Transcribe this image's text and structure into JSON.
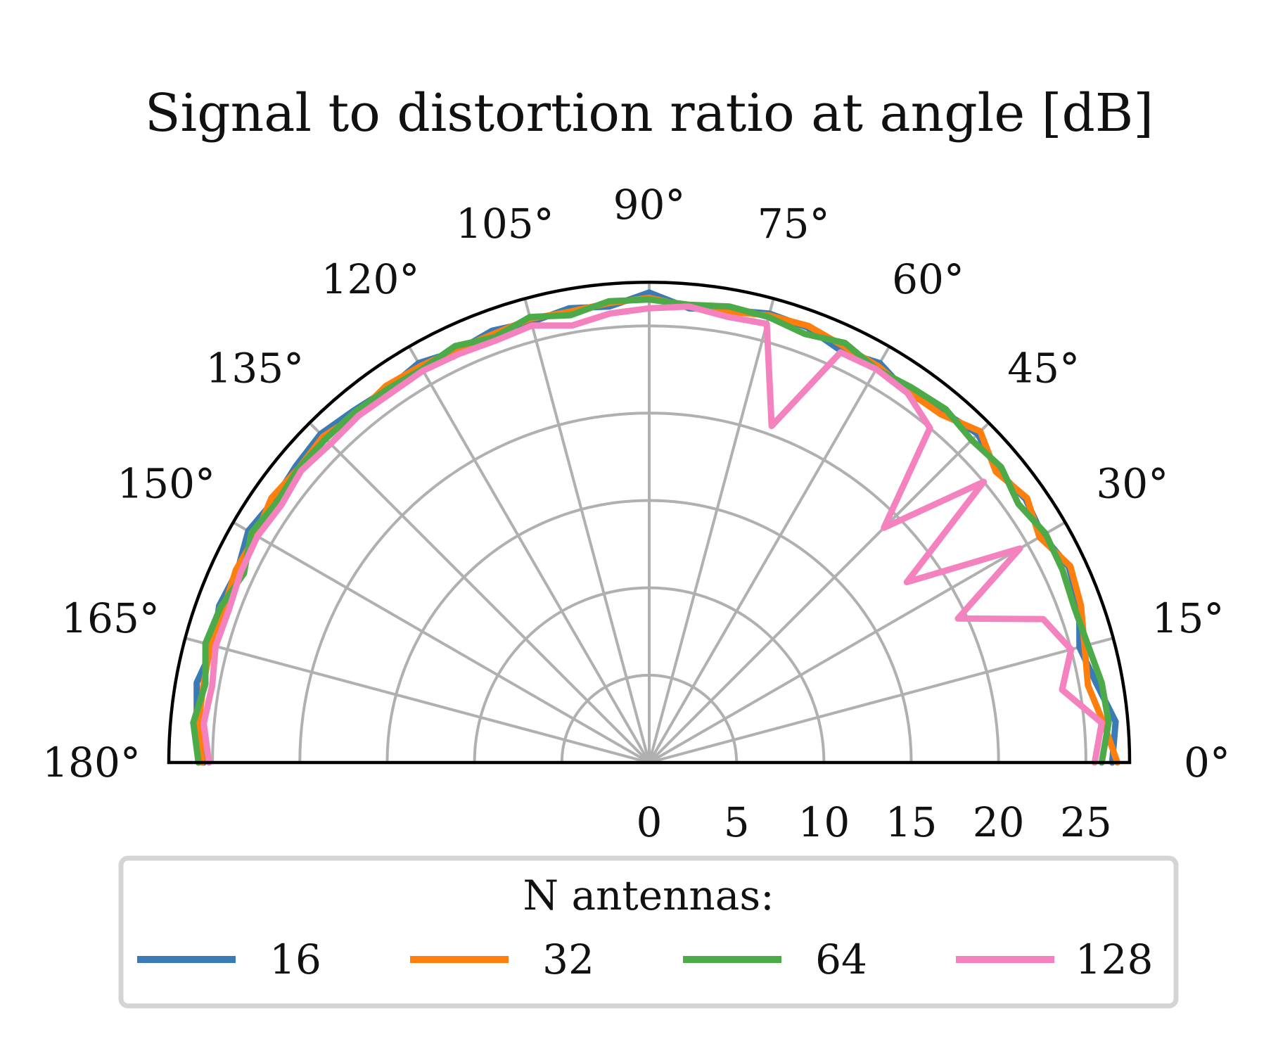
{
  "chart_data": {
    "type": "polar-line",
    "title": "Signal to distortion ratio at angle [dB]",
    "theta_range_deg": [
      0,
      180
    ],
    "r_range": [
      0,
      27.5
    ],
    "angle_ticks": [
      "0°",
      "15°",
      "30°",
      "45°",
      "60°",
      "75°",
      "90°",
      "105°",
      "120°",
      "135°",
      "150°",
      "165°",
      "180°"
    ],
    "radial_ticks": [
      "0",
      "5",
      "10",
      "15",
      "20",
      "25"
    ],
    "radial_tick_values": [
      0,
      5,
      10,
      15,
      20,
      25
    ],
    "grid": true,
    "legend": {
      "title": "N antennas:",
      "placement": "bottom",
      "entries": [
        "16",
        "32",
        "64",
        "128"
      ]
    },
    "theta_deg": [
      0,
      5,
      10,
      15,
      20,
      25,
      30,
      35,
      40,
      45,
      50,
      55,
      60,
      65,
      70,
      75,
      80,
      85,
      90,
      95,
      100,
      105,
      110,
      115,
      120,
      125,
      130,
      135,
      140,
      145,
      150,
      155,
      160,
      165,
      170,
      175,
      180
    ],
    "series": [
      {
        "name": "16",
        "color": "#3a7bb5",
        "r": [
          26.5,
          26.8,
          26.0,
          25.5,
          26.2,
          26.5,
          26.0,
          26.3,
          26.0,
          26.6,
          26.2,
          25.8,
          26.4,
          26.0,
          26.5,
          26.6,
          26.3,
          26.1,
          26.9,
          26.2,
          26.4,
          26.1,
          26.3,
          26.0,
          26.4,
          26.1,
          26.3,
          26.6,
          26.4,
          26.2,
          26.5,
          26.0,
          26.2,
          25.8,
          26.3,
          26.0,
          25.5
        ]
      },
      {
        "name": "32",
        "color": "#ff7f0e",
        "r": [
          26.8,
          26.1,
          25.5,
          25.8,
          26.3,
          26.6,
          25.8,
          26.4,
          25.9,
          26.8,
          26.0,
          25.9,
          26.2,
          26.3,
          26.6,
          26.5,
          26.2,
          26.2,
          26.6,
          26.4,
          26.2,
          26.3,
          26.1,
          26.1,
          26.2,
          26.3,
          26.0,
          26.4,
          26.2,
          26.4,
          26.0,
          26.1,
          25.9,
          26.0,
          25.9,
          25.9,
          25.6
        ]
      },
      {
        "name": "64",
        "color": "#4daa48",
        "r": [
          25.9,
          26.4,
          26.3,
          26.0,
          25.9,
          26.1,
          26.2,
          25.8,
          26.3,
          26.1,
          26.4,
          26.2,
          26.0,
          26.5,
          26.1,
          26.4,
          26.5,
          26.3,
          26.5,
          26.5,
          26.0,
          26.4,
          25.9,
          26.3,
          26.0,
          26.1,
          26.2,
          26.2,
          26.2,
          26.0,
          26.3,
          25.6,
          26.1,
          26.3,
          25.8,
          26.2,
          25.8
        ]
      },
      {
        "name": "128",
        "color": "#f482be",
        "r": [
          25.5,
          26.0,
          24.0,
          25.0,
          24.0,
          19.5,
          24.5,
          18.0,
          25.0,
          19.0,
          25.0,
          25.8,
          26.0,
          25.9,
          20.5,
          26.0,
          25.9,
          26.2,
          26.0,
          25.8,
          25.4,
          25.9,
          25.7,
          25.8,
          25.9,
          25.8,
          25.9,
          25.8,
          26.0,
          25.7,
          25.9,
          25.8,
          25.6,
          25.7,
          25.4,
          25.6,
          25.2
        ]
      }
    ]
  }
}
